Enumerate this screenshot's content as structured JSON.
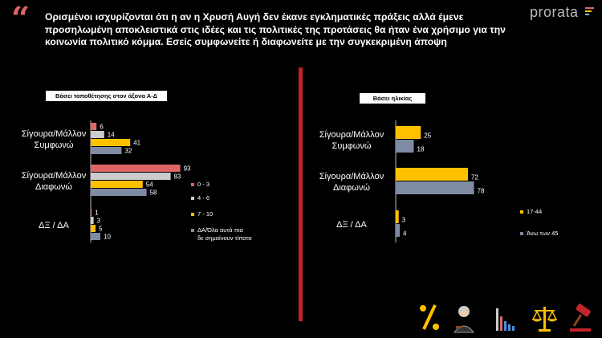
{
  "header": {
    "question": "Ορισμένοι ισχυρίζονται ότι η αν η Χρυσή Αυγή δεν έκανε εγκληματικές πράξεις αλλά έμενε προσηλωμένη αποκλειστικά στις ιδέες και τις πολιτικές της προτάσεις θα ήταν ένα χρήσιμο για την κοινωνία πολιτικό κόμμα. Εσείς συμφωνείτε ή διαφωνείτε με την συγκεκριμένη άποψη",
    "quote_mark": "“",
    "logo": "prorata"
  },
  "colors": {
    "red": "#e06666",
    "lightgray": "#cccccc",
    "yellow": "#ffc000",
    "gray": "#7f8ba3",
    "divider": "#c0252a"
  },
  "chart_data": [
    {
      "type": "bar",
      "orientation": "horizontal",
      "title": "Βάσει τοποθέτησης στον άξονα Α-Δ",
      "categories": [
        "Σίγουρα/Μάλλον Συμφωνώ",
        "Σίγουρα/Μάλλον Διαφωνώ",
        "ΔΞ / ΔΑ"
      ],
      "series": [
        {
          "name": "0 - 3",
          "color": "#e06666",
          "values": [
            6,
            93,
            1
          ]
        },
        {
          "name": "4 - 6",
          "color": "#cccccc",
          "values": [
            14,
            83,
            3
          ]
        },
        {
          "name": "7 - 10",
          "color": "#ffc000",
          "values": [
            41,
            54,
            5
          ]
        },
        {
          "name": "ΔΑ/Όλα αυτά πια δε σημαίνουν τίποτα",
          "color": "#7f8ba3",
          "values": [
            32,
            58,
            10
          ]
        }
      ],
      "xlim": [
        0,
        100
      ],
      "legend": "right"
    },
    {
      "type": "bar",
      "orientation": "horizontal",
      "title": "Βάσει ηλικίας",
      "categories": [
        "Σίγουρα/Μάλλον Συμφωνώ",
        "Σίγουρα/Μάλλον Διαφωνώ",
        "ΔΞ / ΔΑ"
      ],
      "series": [
        {
          "name": "17-44",
          "color": "#ffc000",
          "values": [
            25,
            72,
            3
          ]
        },
        {
          "name": "Άνω των 45",
          "color": "#7f8ba3",
          "values": [
            18,
            78,
            4
          ]
        }
      ],
      "xlim": [
        0,
        100
      ],
      "legend": "right"
    }
  ],
  "icons": [
    "percent-icon",
    "judge-icon",
    "bar-chart-icon",
    "scales-icon",
    "gavel-icon"
  ]
}
